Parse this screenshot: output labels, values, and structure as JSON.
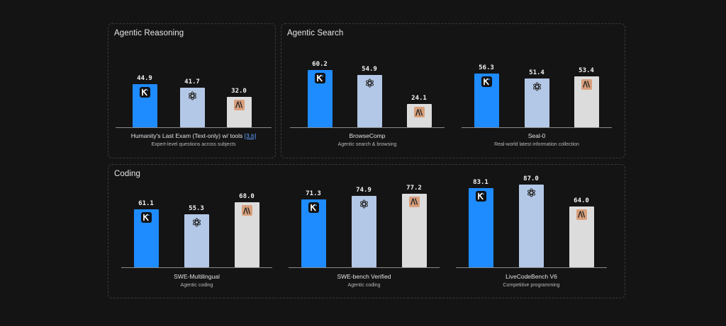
{
  "panels": [
    {
      "id": "reasoning",
      "title": "Agentic Reasoning"
    },
    {
      "id": "search",
      "title": "Agentic Search"
    },
    {
      "id": "coding",
      "title": "Coding"
    }
  ],
  "colors": {
    "kimi": "#1e8bff",
    "openai": "#b3c8e6",
    "anthropic": "#dcdcdc",
    "anthropic_logo": "#d9a07c"
  },
  "chart_data": [
    {
      "type": "bar",
      "panel": "reasoning",
      "title": "Humanity's Last Exam (Text-only) w/ tools",
      "title_ref": "[3.b]",
      "subtitle": "Expert-level questions across subjects",
      "series_logos": [
        "kimi-icon",
        "openai-icon",
        "anthropic-icon"
      ],
      "values": [
        44.9,
        41.7,
        32.0
      ],
      "labels": [
        "44.9",
        "41.7",
        "32.0"
      ],
      "ylim": [
        0,
        100
      ]
    },
    {
      "type": "bar",
      "panel": "search",
      "title": "BrowseComp",
      "subtitle": "Agentic search & browsing",
      "series_logos": [
        "kimi-icon",
        "openai-icon",
        "anthropic-icon"
      ],
      "values": [
        60.2,
        54.9,
        24.1
      ],
      "labels": [
        "60.2",
        "54.9",
        "24.1"
      ],
      "ylim": [
        0,
        100
      ]
    },
    {
      "type": "bar",
      "panel": "search",
      "title": "Seal-0",
      "subtitle": "Real-world latest information collection",
      "series_logos": [
        "kimi-icon",
        "openai-icon",
        "anthropic-icon"
      ],
      "values": [
        56.3,
        51.4,
        53.4
      ],
      "labels": [
        "56.3",
        "51.4",
        "53.4"
      ],
      "ylim": [
        0,
        100
      ]
    },
    {
      "type": "bar",
      "panel": "coding",
      "title": "SWE-Multilingual",
      "subtitle": "Agentic coding",
      "series_logos": [
        "kimi-icon",
        "openai-icon",
        "anthropic-icon"
      ],
      "values": [
        61.1,
        55.3,
        68.0
      ],
      "labels": [
        "61.1",
        "55.3",
        "68.0"
      ],
      "ylim": [
        0,
        100
      ]
    },
    {
      "type": "bar",
      "panel": "coding",
      "title": "SWE-bench Verified",
      "subtitle": "Agentic coding",
      "series_logos": [
        "kimi-icon",
        "openai-icon",
        "anthropic-icon"
      ],
      "values": [
        71.3,
        74.9,
        77.2
      ],
      "labels": [
        "71.3",
        "74.9",
        "77.2"
      ],
      "ylim": [
        0,
        100
      ]
    },
    {
      "type": "bar",
      "panel": "coding",
      "title": "LiveCodeBench V6",
      "subtitle": "Competitive programming",
      "series_logos": [
        "kimi-icon",
        "openai-icon",
        "anthropic-icon"
      ],
      "values": [
        83.1,
        87.0,
        64.0
      ],
      "labels": [
        "83.1",
        "87.0",
        "64.0"
      ],
      "ylim": [
        0,
        100
      ]
    }
  ]
}
